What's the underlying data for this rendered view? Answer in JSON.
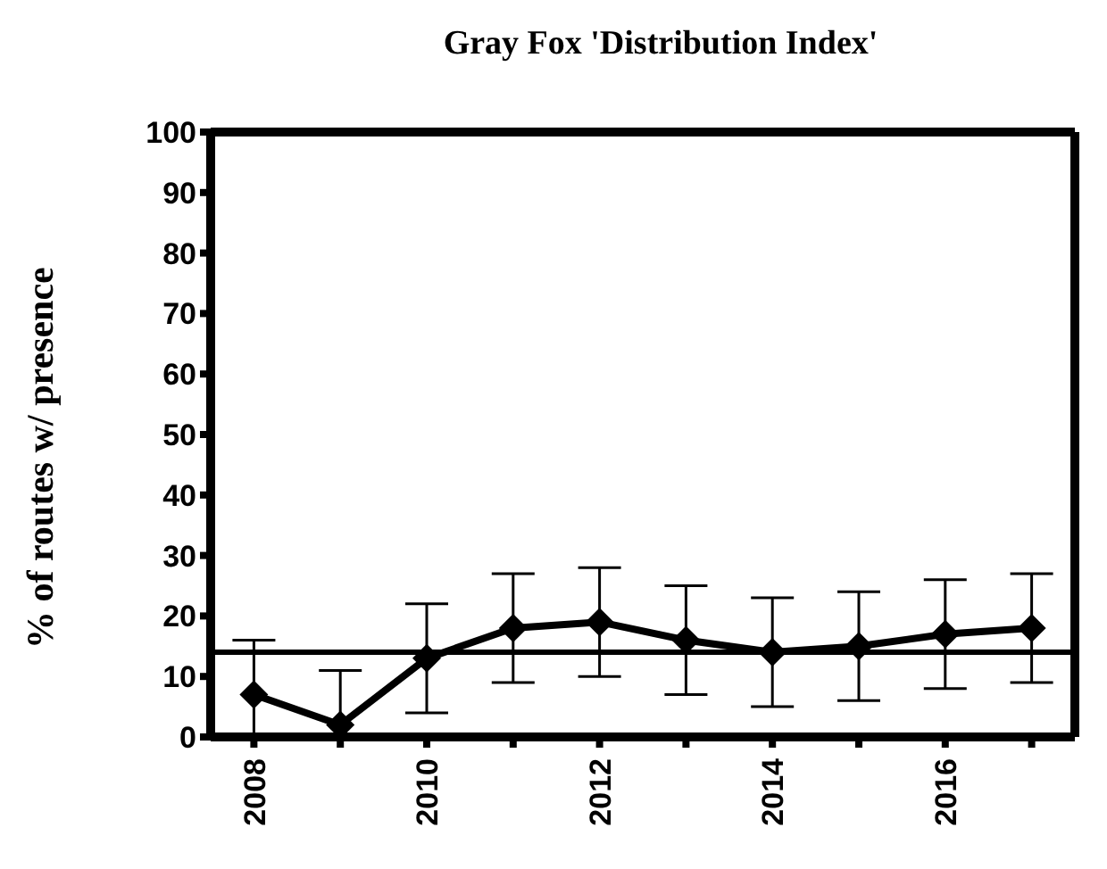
{
  "chart_data": {
    "type": "line",
    "title": "Gray Fox 'Distribution Index'",
    "ylabel": "% of routes w/ presence",
    "x": [
      2008,
      2009,
      2010,
      2011,
      2012,
      2013,
      2014,
      2015,
      2016,
      2017
    ],
    "series": [
      {
        "color": "#000000",
        "values": [
          7,
          2,
          13,
          18,
          19,
          16,
          14,
          15,
          17,
          18
        ],
        "errors": [
          [
            0,
            16
          ],
          [
            0,
            11
          ],
          9,
          9,
          9,
          9,
          9,
          9,
          9,
          9
        ]
      }
    ],
    "xlim": [
      2007.5,
      2017.5
    ],
    "xticks": [
      2008,
      {
        "value": 2009,
        "label": null
      },
      2010,
      {
        "value": 2011,
        "label": null
      },
      2012,
      {
        "value": 2013,
        "label": null
      },
      2014,
      {
        "value": 2015,
        "label": null
      },
      2016,
      {
        "value": 2017,
        "label": null
      }
    ],
    "ylim": [
      0,
      100
    ],
    "yticks": [
      0,
      10,
      20,
      30,
      40,
      50,
      60,
      70,
      80,
      90,
      100
    ],
    "ref_lines": [
      {
        "axis": "y",
        "value": 14,
        "color": "#000000"
      }
    ],
    "marker": "diamond",
    "line_style": "solid",
    "grid": false,
    "legend": false
  }
}
